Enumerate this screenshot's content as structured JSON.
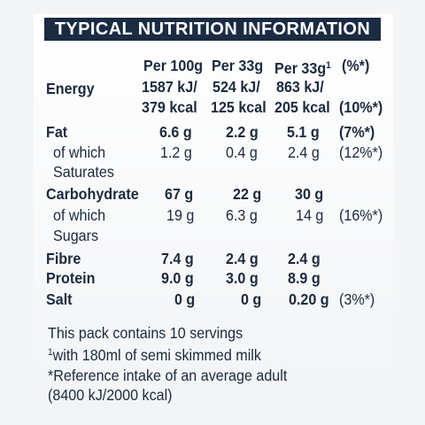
{
  "header": {
    "title": "TYPICAL NUTRITION INFORMATION"
  },
  "columns": {
    "per100g": "Per 100g",
    "per33g": "Per 33g",
    "per33g_milk": "Per 33g",
    "per33g_milk_sup": "1",
    "ri": "(%*)"
  },
  "rows": {
    "energy": {
      "label": "Energy",
      "v100_a": "1587 kJ/",
      "v100_b": "379 kcal",
      "v33_a": "524 kJ/",
      "v33_b": "125 kcal",
      "vmilk_a": "863 kJ/",
      "vmilk_b": "205 kcal",
      "ri": "(10%*)"
    },
    "fat": {
      "label": "Fat",
      "v100": "6.6 g",
      "v33": "2.2 g",
      "vmilk": "5.1 g",
      "ri": "(7%*)"
    },
    "saturates": {
      "label_a": "of which",
      "label_b": "Saturates",
      "v100": "1.2 g",
      "v33": "0.4 g",
      "vmilk": "2.4 g",
      "ri": "(12%*)"
    },
    "carbohydrate": {
      "label": "Carbohydrate",
      "v100": "67 g",
      "v33": "22 g",
      "vmilk": "30 g"
    },
    "sugars": {
      "label_a": "of which",
      "label_b": "Sugars",
      "v100": "19 g",
      "v33": "6.3 g",
      "vmilk": "14 g",
      "ri": "(16%*)"
    },
    "fibre": {
      "label": "Fibre",
      "v100": "7.4 g",
      "v33": "2.4 g",
      "vmilk": "2.4 g"
    },
    "protein": {
      "label": "Protein",
      "v100": "9.0 g",
      "v33": "3.0 g",
      "vmilk": "8.9 g"
    },
    "salt": {
      "label": "Salt",
      "v100": "0 g",
      "v33": "0 g",
      "vmilk": "0.20 g",
      "ri": "(3%*)"
    }
  },
  "footer": {
    "servings": "This pack contains 10 servings",
    "milk_note_sup": "1",
    "milk_note": "with 180ml of semi skimmed milk",
    "ref_line1": "*Reference intake of an average adult",
    "ref_line2": "(8400 kJ/2000 kcal)"
  },
  "colors": {
    "header_bg": "#1a2b42",
    "text": "#1b2a3d",
    "background": "#f3f5f7"
  }
}
